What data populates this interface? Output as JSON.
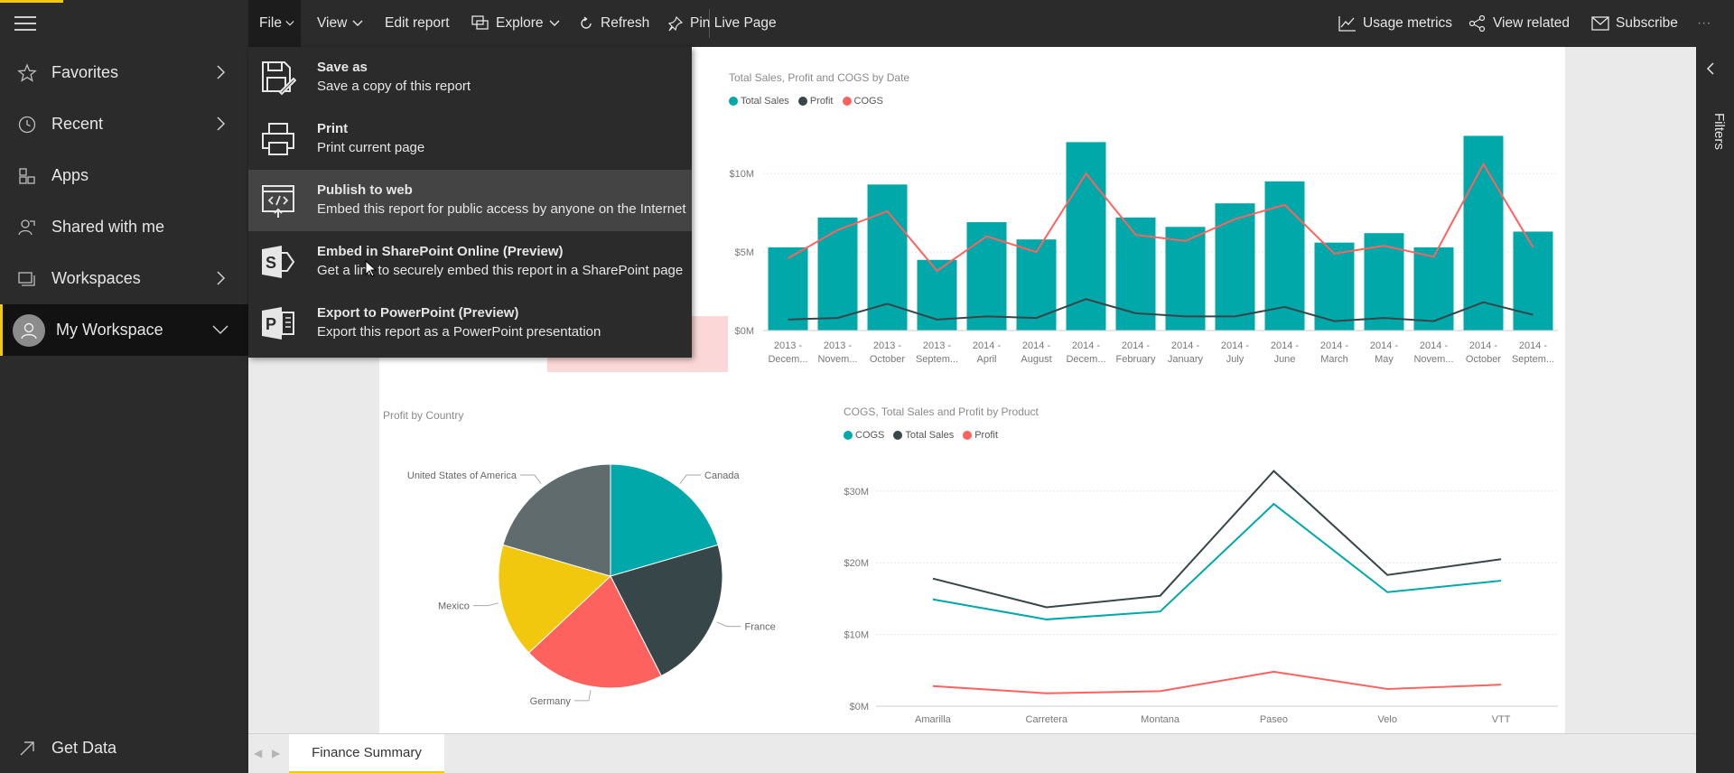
{
  "nav": {
    "items": [
      {
        "label": "Favorites",
        "icon": "star-icon",
        "has_chevron": true
      },
      {
        "label": "Recent",
        "icon": "clock-icon",
        "has_chevron": true
      },
      {
        "label": "Apps",
        "icon": "apps-icon",
        "has_chevron": false
      },
      {
        "label": "Shared with me",
        "icon": "shared-user-icon",
        "has_chevron": false
      },
      {
        "label": "Workspaces",
        "icon": "workspaces-icon",
        "has_chevron": true
      }
    ],
    "my_workspace": "My Workspace",
    "get_data": "Get Data"
  },
  "toolbar": {
    "file": "File",
    "view": "View",
    "edit_report": "Edit report",
    "explore": "Explore",
    "refresh": "Refresh",
    "pin_live_page": "Pin Live Page",
    "usage_metrics": "Usage metrics",
    "view_related": "View related",
    "subscribe": "Subscribe",
    "more": "···"
  },
  "file_menu": [
    {
      "title": "Save as",
      "subtitle": "Save a copy of this report",
      "icon": "save-as-icon"
    },
    {
      "title": "Print",
      "subtitle": "Print current page",
      "icon": "print-icon"
    },
    {
      "title": "Publish to web",
      "subtitle": "Embed this report for public access by anyone on the Internet",
      "icon": "publish-web-icon"
    },
    {
      "title": "Embed in SharePoint Online (Preview)",
      "subtitle": "Get a link to securely embed this report in a SharePoint page",
      "icon": "sharepoint-icon"
    },
    {
      "title": "Export to PowerPoint (Preview)",
      "subtitle": "Export this report as a PowerPoint presentation",
      "icon": "powerpoint-icon"
    }
  ],
  "filters_label": "Filters",
  "page_tab": "Finance Summary",
  "colors": {
    "teal": "#01A8AA",
    "dark": "#374649",
    "salmon": "#FD625E",
    "yellow": "#F2C80F",
    "gray": "#5F6B6D"
  },
  "chart_data": [
    {
      "type": "bar",
      "title": "Total Sales, Profit and COGS by Date",
      "categories": [
        "2013 - Decem...",
        "2013 - Novem...",
        "2013 - October",
        "2013 - Septem...",
        "2014 - April",
        "2014 - August",
        "2014 - Decem...",
        "2014 - February",
        "2014 - January",
        "2014 - July",
        "2014 - June",
        "2014 - March",
        "2014 - May",
        "2014 - Novem...",
        "2014 - October",
        "2014 - Septem..."
      ],
      "y_ticks": [
        "$0M",
        "$5M",
        "$10M"
      ],
      "ylim": [
        0,
        13
      ],
      "series": [
        {
          "name": "Total Sales",
          "kind": "bar",
          "values": [
            5.3,
            7.2,
            9.3,
            4.5,
            6.9,
            5.8,
            12.0,
            7.2,
            6.6,
            8.1,
            9.5,
            5.6,
            6.2,
            5.3,
            12.4,
            6.3
          ]
        },
        {
          "name": "Profit",
          "kind": "line",
          "values": [
            0.7,
            0.8,
            1.7,
            0.7,
            0.9,
            0.8,
            2.0,
            1.1,
            0.9,
            0.9,
            1.5,
            0.6,
            0.8,
            0.6,
            1.8,
            1.0
          ]
        },
        {
          "name": "COGS",
          "kind": "line",
          "values": [
            4.6,
            6.4,
            7.6,
            3.8,
            6.0,
            5.0,
            10.0,
            6.1,
            5.7,
            7.1,
            8.0,
            4.9,
            5.4,
            4.7,
            10.6,
            5.3
          ]
        }
      ]
    },
    {
      "type": "pie",
      "title": "Profit by Country",
      "slices": [
        {
          "label": "Canada",
          "value": 20.5
        },
        {
          "label": "France",
          "value": 22.0
        },
        {
          "label": "Germany",
          "value": 20.5
        },
        {
          "label": "Mexico",
          "value": 16.5
        },
        {
          "label": "United States of America",
          "value": 20.5
        }
      ]
    },
    {
      "type": "line",
      "title": "COGS, Total Sales and Profit by Product",
      "categories": [
        "Amarilla",
        "Carretera",
        "Montana",
        "Paseo",
        "Velo",
        "VTT"
      ],
      "y_ticks": [
        "$0M",
        "$10M",
        "$20M",
        "$30M"
      ],
      "ylim": [
        0,
        33
      ],
      "series": [
        {
          "name": "COGS",
          "values": [
            14.9,
            12.1,
            13.2,
            28.2,
            15.9,
            17.5
          ]
        },
        {
          "name": "Total Sales",
          "values": [
            17.8,
            13.8,
            15.4,
            32.8,
            18.3,
            20.5
          ]
        },
        {
          "name": "Profit",
          "values": [
            2.8,
            1.8,
            2.1,
            4.8,
            2.4,
            3.0
          ]
        }
      ]
    }
  ]
}
